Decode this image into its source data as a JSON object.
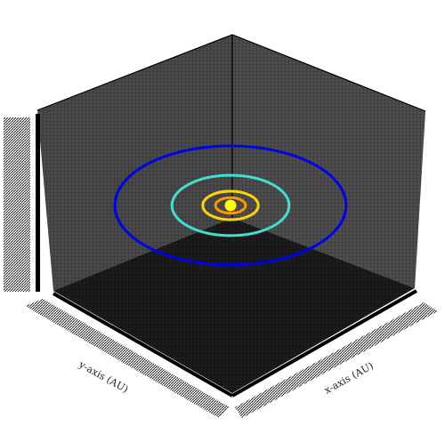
{
  "chart_data": {
    "type": "line",
    "projection": "3d",
    "title": "",
    "xlabel": "x-axis (AU)",
    "ylabel": "y-axis (AU)",
    "zlabel": "",
    "pane_color": "#4a4a4a",
    "floor_color": "#1c1c1c",
    "grid_color": "#000000",
    "tick_labels_illegible": true,
    "center_body": {
      "name": "",
      "x": 0,
      "y": 0,
      "color": "#ffff00"
    },
    "series": [
      {
        "radius": 0.39,
        "color": "#ff9900"
      },
      {
        "radius": 0.72,
        "color": "#ffd700"
      },
      {
        "radius": 1.52,
        "color": "#40e0d0"
      },
      {
        "radius": 3.0,
        "color": "#0000ee"
      }
    ]
  }
}
